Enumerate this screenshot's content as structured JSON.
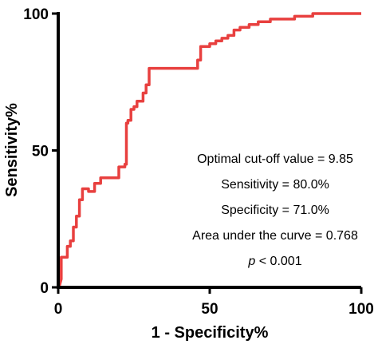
{
  "chart_data": {
    "type": "line",
    "xlabel": "1 - Specificity%",
    "ylabel": "Sensitivity%",
    "xlim": [
      0,
      100
    ],
    "ylim": [
      0,
      100
    ],
    "xticks": [
      0,
      50,
      100
    ],
    "yticks": [
      0,
      50,
      100
    ],
    "grid": false,
    "series": [
      {
        "color": "#e8403f",
        "x": [
          0,
          0.5,
          1,
          1,
          3,
          3,
          4,
          4,
          5,
          5,
          6,
          6,
          7,
          7,
          8,
          8,
          10,
          10,
          12,
          12,
          14,
          14,
          17,
          17,
          20,
          20,
          22,
          22,
          22.5,
          22.5,
          23,
          23,
          24,
          24,
          25,
          25,
          26,
          26,
          28,
          28,
          29,
          29,
          30,
          30,
          46,
          46,
          47,
          47,
          50,
          50,
          52,
          52,
          54,
          54,
          56,
          56,
          58,
          58,
          60,
          60,
          63,
          63,
          66,
          66,
          70,
          70,
          74,
          74,
          78,
          78,
          81,
          81,
          84,
          84,
          88,
          88,
          90,
          90,
          95,
          95,
          100
        ],
        "y": [
          0,
          1,
          3,
          11,
          11,
          15,
          15,
          17,
          17,
          22,
          22,
          26,
          26,
          32,
          32,
          36,
          36,
          35,
          35,
          38,
          38,
          40,
          40,
          40,
          40,
          44,
          44,
          45,
          45,
          60,
          60,
          61,
          61,
          65,
          65,
          66,
          66,
          68,
          68,
          71,
          71,
          74,
          74,
          80,
          80,
          83,
          83,
          88,
          88,
          89,
          89,
          90,
          90,
          91,
          91,
          92,
          92,
          94,
          94,
          95,
          95,
          96,
          96,
          97,
          97,
          98,
          98,
          98,
          98,
          99,
          99,
          99,
          99,
          100,
          100,
          100,
          100,
          100,
          100,
          100,
          100
        ]
      }
    ],
    "annotations": [
      "Optimal cut-off value = 9.85",
      "Sensitivity = 80.0%",
      "Specificity = 71.0%",
      "Area under the curve = 0.768"
    ],
    "p_symbol": "p",
    "p_rest": " < 0.001"
  }
}
